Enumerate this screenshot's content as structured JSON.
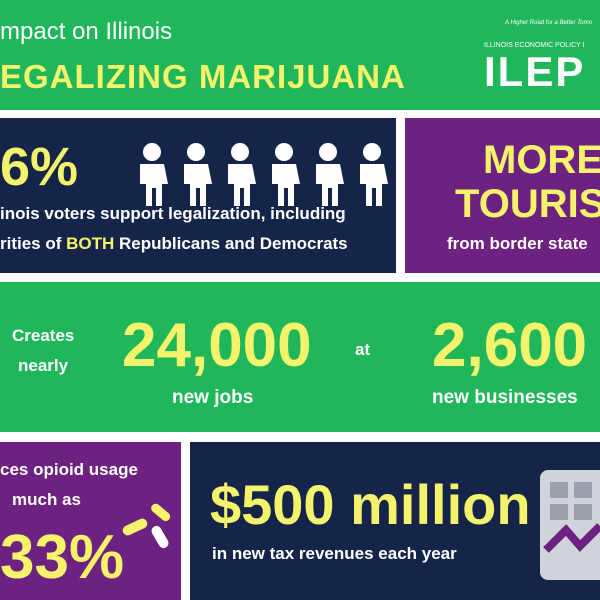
{
  "header": {
    "title": "mpact on Illinois",
    "headline": "EGALIZING MARIJUANA",
    "logo": {
      "tagline": "A Higher Road for a Better Tomo",
      "org": "ILLINOIS ECONOMIC POLICY I",
      "name": "ILEP"
    }
  },
  "voters": {
    "stat": "6%",
    "line1": "inois voters support legalization, including",
    "line2_pre": "rities of ",
    "line2_em": "BOTH",
    "line2_post": " Republicans and Democrats"
  },
  "tourism": {
    "line1": "MORE",
    "line2": "TOURISM",
    "line3": "from border state"
  },
  "jobs": {
    "lead1": "Creates",
    "lead2": "nearly",
    "jobs_stat": "24,000",
    "jobs_label": "new jobs",
    "at": "at",
    "biz_stat": "2,600",
    "biz_label": "new businesses"
  },
  "opioid": {
    "line1": "ces opioid usage",
    "line2": "much as",
    "stat": "33%"
  },
  "tax": {
    "stat": "$500 million",
    "label": "in new tax revenues each year"
  }
}
